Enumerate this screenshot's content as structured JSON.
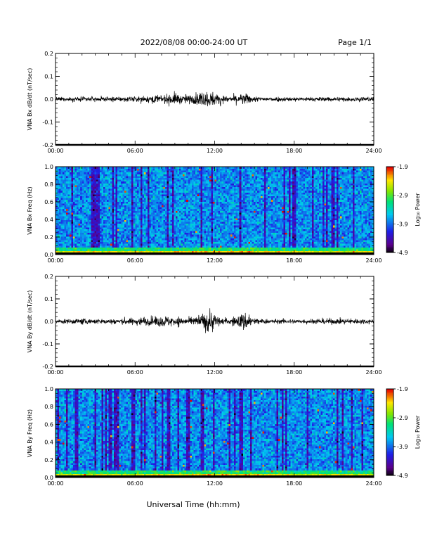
{
  "header": {
    "title": "2022/08/08  00:00-24:00 UT",
    "page": "Page 1/1"
  },
  "xaxis": {
    "label": "Universal Time (hh:mm)",
    "ticks": [
      "00:00",
      "06:00",
      "12:00",
      "18:00",
      "24:00"
    ],
    "range_hours": [
      0,
      24
    ]
  },
  "colorbar": {
    "label": "Log₁₀ Power",
    "ticks": [
      "-1.9",
      "-2.9",
      "-3.9",
      "-4.9"
    ],
    "tick_values": [
      -1.9,
      -2.9,
      -3.9,
      -4.9
    ],
    "range": [
      -4.9,
      -1.9
    ],
    "colormap": "rainbow (black-purple-blue-cyan-green-yellow-red)"
  },
  "chart_data": [
    {
      "type": "line",
      "ylabel": "VNA Bx dB/dt (nT/sec)",
      "ylim": [
        -0.2,
        0.2
      ],
      "yticks": [
        "0.2",
        "0.1",
        "0.0",
        "-0.1",
        "-0.2"
      ],
      "ytick_values": [
        0.2,
        0.1,
        0.0,
        -0.1,
        -0.2
      ],
      "series": [
        {
          "x": [
            0,
            2,
            4,
            6,
            8,
            9,
            9.5,
            10,
            11,
            11.5,
            12,
            12.5,
            13,
            14,
            14.5,
            15,
            16,
            18,
            20,
            22,
            24
          ],
          "envelope": [
            0.008,
            0.01,
            0.01,
            0.012,
            0.018,
            0.025,
            0.02,
            0.02,
            0.03,
            0.035,
            0.028,
            0.02,
            0.012,
            0.022,
            0.025,
            0.012,
            0.01,
            0.009,
            0.009,
            0.01,
            0.01
          ]
        }
      ]
    },
    {
      "type": "heatmap",
      "ylabel": "VNA Bx Freq (Hz)",
      "ylim": [
        0,
        1.0
      ],
      "yticks": [
        "1.0",
        "0.8",
        "0.6",
        "0.4",
        "0.2",
        "0.0"
      ],
      "ytick_values": [
        1.0,
        0.8,
        0.6,
        0.4,
        0.2,
        0.0
      ],
      "zlim": [
        -4.9,
        -1.9
      ]
    },
    {
      "type": "line",
      "ylabel": "VNA By dB/dt (nT/sec)",
      "ylim": [
        -0.2,
        0.2
      ],
      "yticks": [
        "0.2",
        "0.1",
        "0.0",
        "-0.1",
        "-0.2"
      ],
      "ytick_values": [
        0.2,
        0.1,
        0.0,
        -0.1,
        -0.2
      ],
      "series": [
        {
          "x": [
            0,
            2,
            4,
            6,
            7,
            8,
            9,
            10,
            11,
            11.5,
            12,
            12.5,
            13,
            14,
            14.5,
            15,
            16,
            18,
            20,
            22,
            24
          ],
          "envelope": [
            0.01,
            0.012,
            0.012,
            0.015,
            0.02,
            0.025,
            0.022,
            0.015,
            0.03,
            0.05,
            0.035,
            0.015,
            0.012,
            0.035,
            0.04,
            0.015,
            0.01,
            0.01,
            0.012,
            0.012,
            0.01
          ]
        }
      ]
    },
    {
      "type": "heatmap",
      "ylabel": "VNA By Freq (Hz)",
      "ylim": [
        0,
        1.0
      ],
      "yticks": [
        "1.0",
        "0.8",
        "0.6",
        "0.4",
        "0.2",
        "0.0"
      ],
      "ytick_values": [
        1.0,
        0.8,
        0.6,
        0.4,
        0.2,
        0.0
      ],
      "zlim": [
        -4.9,
        -1.9
      ]
    }
  ]
}
